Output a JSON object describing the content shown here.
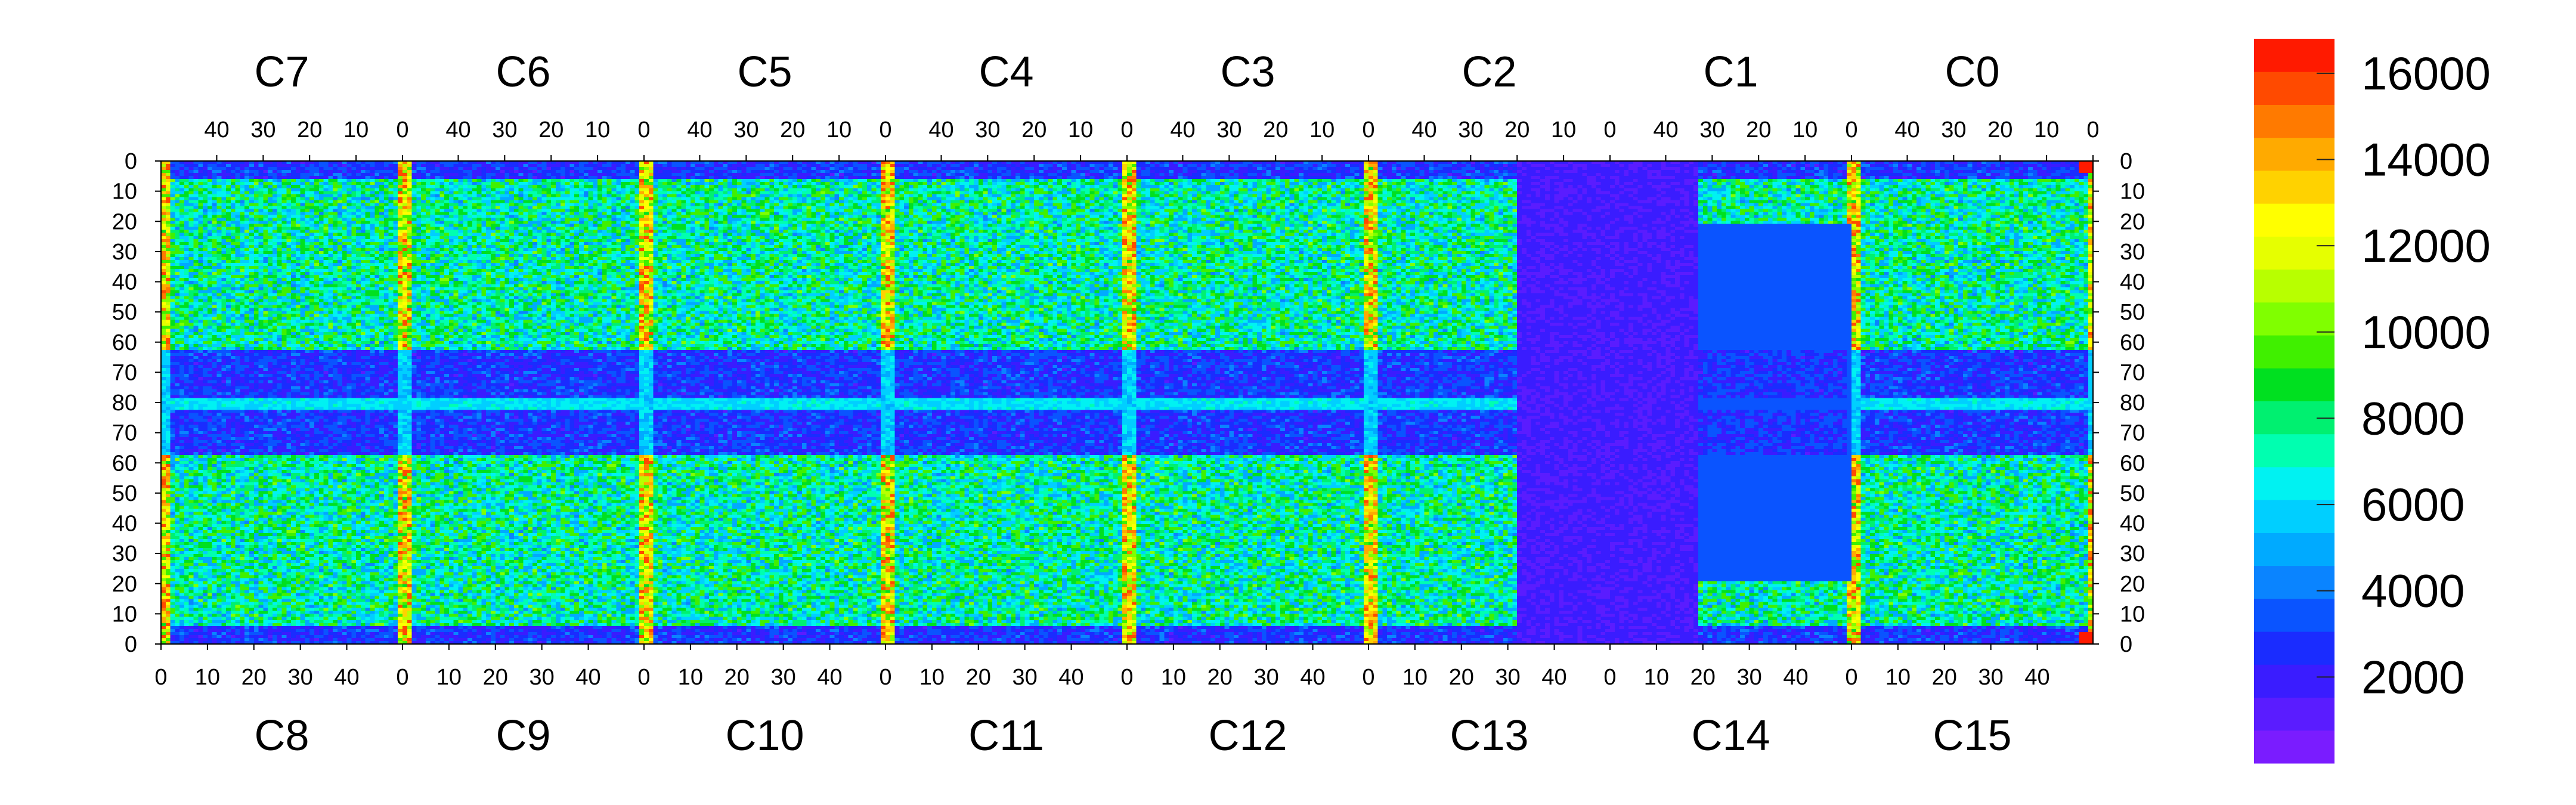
{
  "chart_data": {
    "type": "heatmap",
    "title": "",
    "xlabel": "",
    "ylabel": "",
    "top_chips": [
      "C7",
      "C6",
      "C5",
      "C4",
      "C3",
      "C2",
      "C1",
      "C0"
    ],
    "bottom_chips": [
      "C8",
      "C9",
      "C10",
      "C11",
      "C12",
      "C13",
      "C14",
      "C15"
    ],
    "top_axis_ticks": [
      "40",
      "30",
      "20",
      "10",
      "0"
    ],
    "bottom_axis_ticks": [
      "0",
      "10",
      "20",
      "30",
      "40"
    ],
    "left_axis_ticks": [
      "0",
      "10",
      "20",
      "30",
      "40",
      "50",
      "60",
      "70",
      "80",
      "70",
      "60",
      "50",
      "40",
      "30",
      "20",
      "10",
      "0"
    ],
    "right_axis_ticks": [
      "0",
      "10",
      "20",
      "30",
      "40",
      "50",
      "60",
      "70",
      "80",
      "70",
      "60",
      "50",
      "40",
      "30",
      "20",
      "10",
      "0"
    ],
    "colorbar": {
      "min": 0,
      "max": 16800,
      "ticks": [
        2000,
        4000,
        6000,
        8000,
        10000,
        12000,
        14000,
        16000
      ],
      "tick_labels": [
        "2000",
        "4000",
        "6000",
        "8000",
        "10000",
        "12000",
        "14000",
        "16000"
      ],
      "palette": [
        "#7a1cff",
        "#5a1cff",
        "#3a1cff",
        "#1a2cff",
        "#0a54ff",
        "#0a84ff",
        "#00aaff",
        "#00cfff",
        "#00f2f2",
        "#00ffb0",
        "#00f070",
        "#00e020",
        "#40f000",
        "#80ff00",
        "#b8ff00",
        "#e6ff00",
        "#ffff00",
        "#ffd200",
        "#ffaa00",
        "#ff7a00",
        "#ff4a00",
        "#ff1a00"
      ]
    },
    "structure": {
      "chips_across": 8,
      "columns_per_chip": 52,
      "rows_per_half": 80,
      "hot_columns_between_chips": true,
      "hot_spot_top_right": true,
      "low_gain_block_chip": "C2/C13 and C1/C14 (right part)",
      "dead_pixel_cluster_chip": "C1/C14"
    }
  }
}
